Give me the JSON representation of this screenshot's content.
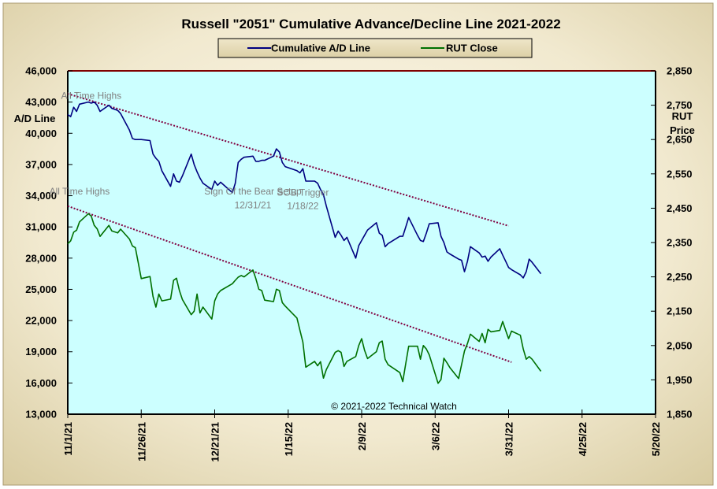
{
  "chart_data": {
    "type": "line",
    "title": "Russell \"2051\" Cumulative Advance/Decline Line 2021-2022",
    "legend": {
      "placement": "top-center"
    },
    "left_axis": {
      "label_lines": [
        "A/D Line"
      ],
      "ticks": [
        "46,000",
        "43,000",
        "40,000",
        "37,000",
        "34,000",
        "31,000",
        "28,000",
        "25,000",
        "22,000",
        "19,000",
        "16,000",
        "13,000"
      ],
      "range": [
        13000,
        46000
      ]
    },
    "right_axis": {
      "label_lines": [
        "RUT",
        "Price"
      ],
      "ticks": [
        "2,850",
        "2,750",
        "2,650",
        "2,550",
        "2,450",
        "2,350",
        "2,250",
        "2,150",
        "2,050",
        "1,950",
        "1,850"
      ],
      "range": [
        1850,
        2850
      ]
    },
    "x_axis": {
      "ticks": [
        "11/1/21",
        "11/26/21",
        "12/21/21",
        "1/15/22",
        "2/9/22",
        "3/6/22",
        "3/31/22",
        "4/25/22",
        "5/20/22"
      ],
      "range": [
        "2021-11-01",
        "2022-05-20"
      ]
    },
    "series": [
      {
        "name": "Cumulative A/D Line",
        "axis": "left",
        "color": "#000080",
        "points": [
          [
            "2021-11-01",
            41800
          ],
          [
            "2021-11-02",
            41600
          ],
          [
            "2021-11-03",
            42500
          ],
          [
            "2021-11-04",
            42100
          ],
          [
            "2021-11-05",
            42800
          ],
          [
            "2021-11-08",
            43000
          ],
          [
            "2021-11-09",
            42900
          ],
          [
            "2021-11-10",
            43000
          ],
          [
            "2021-11-11",
            42700
          ],
          [
            "2021-11-12",
            42100
          ],
          [
            "2021-11-15",
            42700
          ],
          [
            "2021-11-16",
            42400
          ],
          [
            "2021-11-17",
            42300
          ],
          [
            "2021-11-18",
            42200
          ],
          [
            "2021-11-19",
            41900
          ],
          [
            "2021-11-22",
            40300
          ],
          [
            "2021-11-23",
            39500
          ],
          [
            "2021-11-24",
            39400
          ],
          [
            "2021-11-26",
            39400
          ],
          [
            "2021-11-29",
            39300
          ],
          [
            "2021-11-30",
            38000
          ],
          [
            "2021-12-01",
            37600
          ],
          [
            "2021-12-02",
            37300
          ],
          [
            "2021-12-03",
            36400
          ],
          [
            "2021-12-06",
            34900
          ],
          [
            "2021-12-07",
            36100
          ],
          [
            "2021-12-08",
            35400
          ],
          [
            "2021-12-09",
            35300
          ],
          [
            "2021-12-10",
            35900
          ],
          [
            "2021-12-13",
            38000
          ],
          [
            "2021-12-14",
            37000
          ],
          [
            "2021-12-15",
            36300
          ],
          [
            "2021-12-16",
            35700
          ],
          [
            "2021-12-17",
            35200
          ],
          [
            "2021-12-20",
            34600
          ],
          [
            "2021-12-21",
            35400
          ],
          [
            "2021-12-22",
            35000
          ],
          [
            "2021-12-23",
            35300
          ],
          [
            "2021-12-27",
            34300
          ],
          [
            "2021-12-28",
            35200
          ],
          [
            "2021-12-29",
            37200
          ],
          [
            "2021-12-30",
            37500
          ],
          [
            "2021-12-31",
            37700
          ],
          [
            "2022-01-03",
            37800
          ],
          [
            "2022-01-04",
            37300
          ],
          [
            "2022-01-05",
            37300
          ],
          [
            "2022-01-06",
            37400
          ],
          [
            "2022-01-07",
            37400
          ],
          [
            "2022-01-10",
            37800
          ],
          [
            "2022-01-11",
            38500
          ],
          [
            "2022-01-12",
            38200
          ],
          [
            "2022-01-13",
            37200
          ],
          [
            "2022-01-14",
            36800
          ],
          [
            "2022-01-18",
            36400
          ],
          [
            "2022-01-19",
            36200
          ],
          [
            "2022-01-20",
            36600
          ],
          [
            "2022-01-21",
            35400
          ],
          [
            "2022-01-24",
            35400
          ],
          [
            "2022-01-25",
            35200
          ],
          [
            "2022-01-26",
            34600
          ],
          [
            "2022-01-27",
            34100
          ],
          [
            "2022-01-28",
            33000
          ],
          [
            "2022-01-31",
            30000
          ],
          [
            "2022-02-01",
            30600
          ],
          [
            "2022-02-02",
            30200
          ],
          [
            "2022-02-03",
            29700
          ],
          [
            "2022-02-04",
            30000
          ],
          [
            "2022-02-07",
            28000
          ],
          [
            "2022-02-08",
            29200
          ],
          [
            "2022-02-09",
            29700
          ],
          [
            "2022-02-10",
            30200
          ],
          [
            "2022-02-11",
            30700
          ],
          [
            "2022-02-14",
            31400
          ],
          [
            "2022-02-15",
            30400
          ],
          [
            "2022-02-16",
            30200
          ],
          [
            "2022-02-17",
            29100
          ],
          [
            "2022-02-18",
            29400
          ],
          [
            "2022-02-22",
            30100
          ],
          [
            "2022-02-23",
            30100
          ],
          [
            "2022-02-24",
            31000
          ],
          [
            "2022-02-25",
            31900
          ],
          [
            "2022-02-28",
            30200
          ],
          [
            "2022-03-01",
            29700
          ],
          [
            "2022-03-02",
            29600
          ],
          [
            "2022-03-03",
            30400
          ],
          [
            "2022-03-04",
            31300
          ],
          [
            "2022-03-07",
            31400
          ],
          [
            "2022-03-08",
            30100
          ],
          [
            "2022-03-09",
            29500
          ],
          [
            "2022-03-10",
            28600
          ],
          [
            "2022-03-11",
            28400
          ],
          [
            "2022-03-14",
            27900
          ],
          [
            "2022-03-15",
            27800
          ],
          [
            "2022-03-16",
            26700
          ],
          [
            "2022-03-17",
            27700
          ],
          [
            "2022-03-18",
            29100
          ],
          [
            "2022-03-21",
            28500
          ],
          [
            "2022-03-22",
            28100
          ],
          [
            "2022-03-23",
            28200
          ],
          [
            "2022-03-24",
            27700
          ],
          [
            "2022-03-25",
            28100
          ],
          [
            "2022-03-28",
            28900
          ],
          [
            "2022-03-29",
            28300
          ],
          [
            "2022-03-30",
            27700
          ],
          [
            "2022-03-31",
            27100
          ],
          [
            "2022-04-01",
            26900
          ],
          [
            "2022-04-04",
            26400
          ],
          [
            "2022-04-05",
            26100
          ],
          [
            "2022-04-06",
            26700
          ],
          [
            "2022-04-07",
            27900
          ],
          [
            "2022-04-08",
            27600
          ],
          [
            "2022-04-11",
            26500
          ]
        ]
      },
      {
        "name": "RUT Close",
        "axis": "right",
        "color": "#007000",
        "points": [
          [
            "2021-11-01",
            2346
          ],
          [
            "2021-11-02",
            2355
          ],
          [
            "2021-11-03",
            2380
          ],
          [
            "2021-11-04",
            2386
          ],
          [
            "2021-11-05",
            2410
          ],
          [
            "2021-11-08",
            2434
          ],
          [
            "2021-11-09",
            2427
          ],
          [
            "2021-11-10",
            2400
          ],
          [
            "2021-11-11",
            2390
          ],
          [
            "2021-11-12",
            2368
          ],
          [
            "2021-11-15",
            2400
          ],
          [
            "2021-11-16",
            2384
          ],
          [
            "2021-11-17",
            2381
          ],
          [
            "2021-11-18",
            2378
          ],
          [
            "2021-11-19",
            2389
          ],
          [
            "2021-11-22",
            2360
          ],
          [
            "2021-11-23",
            2340
          ],
          [
            "2021-11-24",
            2335
          ],
          [
            "2021-11-26",
            2245
          ],
          [
            "2021-11-29",
            2251
          ],
          [
            "2021-11-30",
            2193
          ],
          [
            "2021-12-01",
            2162
          ],
          [
            "2021-12-02",
            2200
          ],
          [
            "2021-12-03",
            2180
          ],
          [
            "2021-12-06",
            2185
          ],
          [
            "2021-12-07",
            2240
          ],
          [
            "2021-12-08",
            2246
          ],
          [
            "2021-12-09",
            2210
          ],
          [
            "2021-12-10",
            2184
          ],
          [
            "2021-12-13",
            2140
          ],
          [
            "2021-12-14",
            2150
          ],
          [
            "2021-12-15",
            2200
          ],
          [
            "2021-12-16",
            2145
          ],
          [
            "2021-12-17",
            2162
          ],
          [
            "2021-12-20",
            2127
          ],
          [
            "2021-12-21",
            2180
          ],
          [
            "2021-12-22",
            2200
          ],
          [
            "2021-12-23",
            2210
          ],
          [
            "2021-12-27",
            2230
          ],
          [
            "2021-12-28",
            2240
          ],
          [
            "2021-12-29",
            2249
          ],
          [
            "2021-12-30",
            2254
          ],
          [
            "2021-12-31",
            2250
          ],
          [
            "2022-01-03",
            2270
          ],
          [
            "2022-01-04",
            2245
          ],
          [
            "2022-01-05",
            2214
          ],
          [
            "2022-01-06",
            2210
          ],
          [
            "2022-01-07",
            2182
          ],
          [
            "2022-01-10",
            2178
          ],
          [
            "2022-01-11",
            2214
          ],
          [
            "2022-01-12",
            2210
          ],
          [
            "2022-01-13",
            2175
          ],
          [
            "2022-01-14",
            2165
          ],
          [
            "2022-01-18",
            2130
          ],
          [
            "2022-01-19",
            2094
          ],
          [
            "2022-01-20",
            2060
          ],
          [
            "2022-01-21",
            1987
          ],
          [
            "2022-01-24",
            2004
          ],
          [
            "2022-01-25",
            1991
          ],
          [
            "2022-01-26",
            2003
          ],
          [
            "2022-01-27",
            1955
          ],
          [
            "2022-01-28",
            1980
          ],
          [
            "2022-01-31",
            2030
          ],
          [
            "2022-02-01",
            2035
          ],
          [
            "2022-02-02",
            2030
          ],
          [
            "2022-02-03",
            1989
          ],
          [
            "2022-02-04",
            2004
          ],
          [
            "2022-02-07",
            2018
          ],
          [
            "2022-02-08",
            2050
          ],
          [
            "2022-02-09",
            2070
          ],
          [
            "2022-02-10",
            2036
          ],
          [
            "2022-02-11",
            2012
          ],
          [
            "2022-02-14",
            2032
          ],
          [
            "2022-02-15",
            2058
          ],
          [
            "2022-02-16",
            2063
          ],
          [
            "2022-02-17",
            2010
          ],
          [
            "2022-02-18",
            1994
          ],
          [
            "2022-02-22",
            1971
          ],
          [
            "2022-02-23",
            1945
          ],
          [
            "2022-02-24",
            1998
          ],
          [
            "2022-02-25",
            2048
          ],
          [
            "2022-02-28",
            2048
          ],
          [
            "2022-03-01",
            2010
          ],
          [
            "2022-03-02",
            2050
          ],
          [
            "2022-03-03",
            2040
          ],
          [
            "2022-03-04",
            2023
          ],
          [
            "2022-03-07",
            1940
          ],
          [
            "2022-03-08",
            1951
          ],
          [
            "2022-03-09",
            2013
          ],
          [
            "2022-03-10",
            2000
          ],
          [
            "2022-03-11",
            1986
          ],
          [
            "2022-03-14",
            1954
          ],
          [
            "2022-03-15",
            1994
          ],
          [
            "2022-03-16",
            2034
          ],
          [
            "2022-03-17",
            2056
          ],
          [
            "2022-03-18",
            2083
          ],
          [
            "2022-03-21",
            2062
          ],
          [
            "2022-03-22",
            2085
          ],
          [
            "2022-03-23",
            2058
          ],
          [
            "2022-03-24",
            2097
          ],
          [
            "2022-03-25",
            2090
          ],
          [
            "2022-03-28",
            2094
          ],
          [
            "2022-03-29",
            2120
          ],
          [
            "2022-03-30",
            2094
          ],
          [
            "2022-03-31",
            2070
          ],
          [
            "2022-04-01",
            2092
          ],
          [
            "2022-04-04",
            2080
          ],
          [
            "2022-04-05",
            2040
          ],
          [
            "2022-04-06",
            2010
          ],
          [
            "2022-04-07",
            2018
          ],
          [
            "2022-04-08",
            2010
          ],
          [
            "2022-04-11",
            1975
          ]
        ]
      }
    ],
    "trendlines": [
      {
        "axis": "left",
        "color": "#800040",
        "style": "dotted",
        "from": [
          "2021-11-01",
          43800
        ],
        "to": [
          "2022-03-31",
          31100
        ]
      },
      {
        "axis": "left",
        "color": "#800040",
        "style": "dotted",
        "from": [
          "2021-11-01",
          33000
        ],
        "to": [
          "2022-04-01",
          18000
        ]
      }
    ],
    "annotations": [
      {
        "text": "All Time Highs",
        "at": [
          "2021-11-09",
          43300
        ]
      },
      {
        "text": "All Time Highs",
        "at": [
          "2021-11-05",
          34100
        ]
      },
      {
        "text": "Sign Of the Bear  Setup",
        "at": [
          "2022-01-03",
          34100
        ]
      },
      {
        "text": "12/31/21",
        "at": [
          "2022-01-03",
          32800
        ]
      },
      {
        "text": "SOB Trigger",
        "at": [
          "2022-01-20",
          34000
        ]
      },
      {
        "text": "1/18/22",
        "at": [
          "2022-01-20",
          32700
        ]
      }
    ],
    "credit": "© 2021-2022  Technical Watch",
    "colors": {
      "page_bg": "#ede5c8",
      "plot_bg": "#ccffff",
      "plot_top_line": "#800000",
      "axis_text": "#000000",
      "note_text": "#808080"
    }
  }
}
